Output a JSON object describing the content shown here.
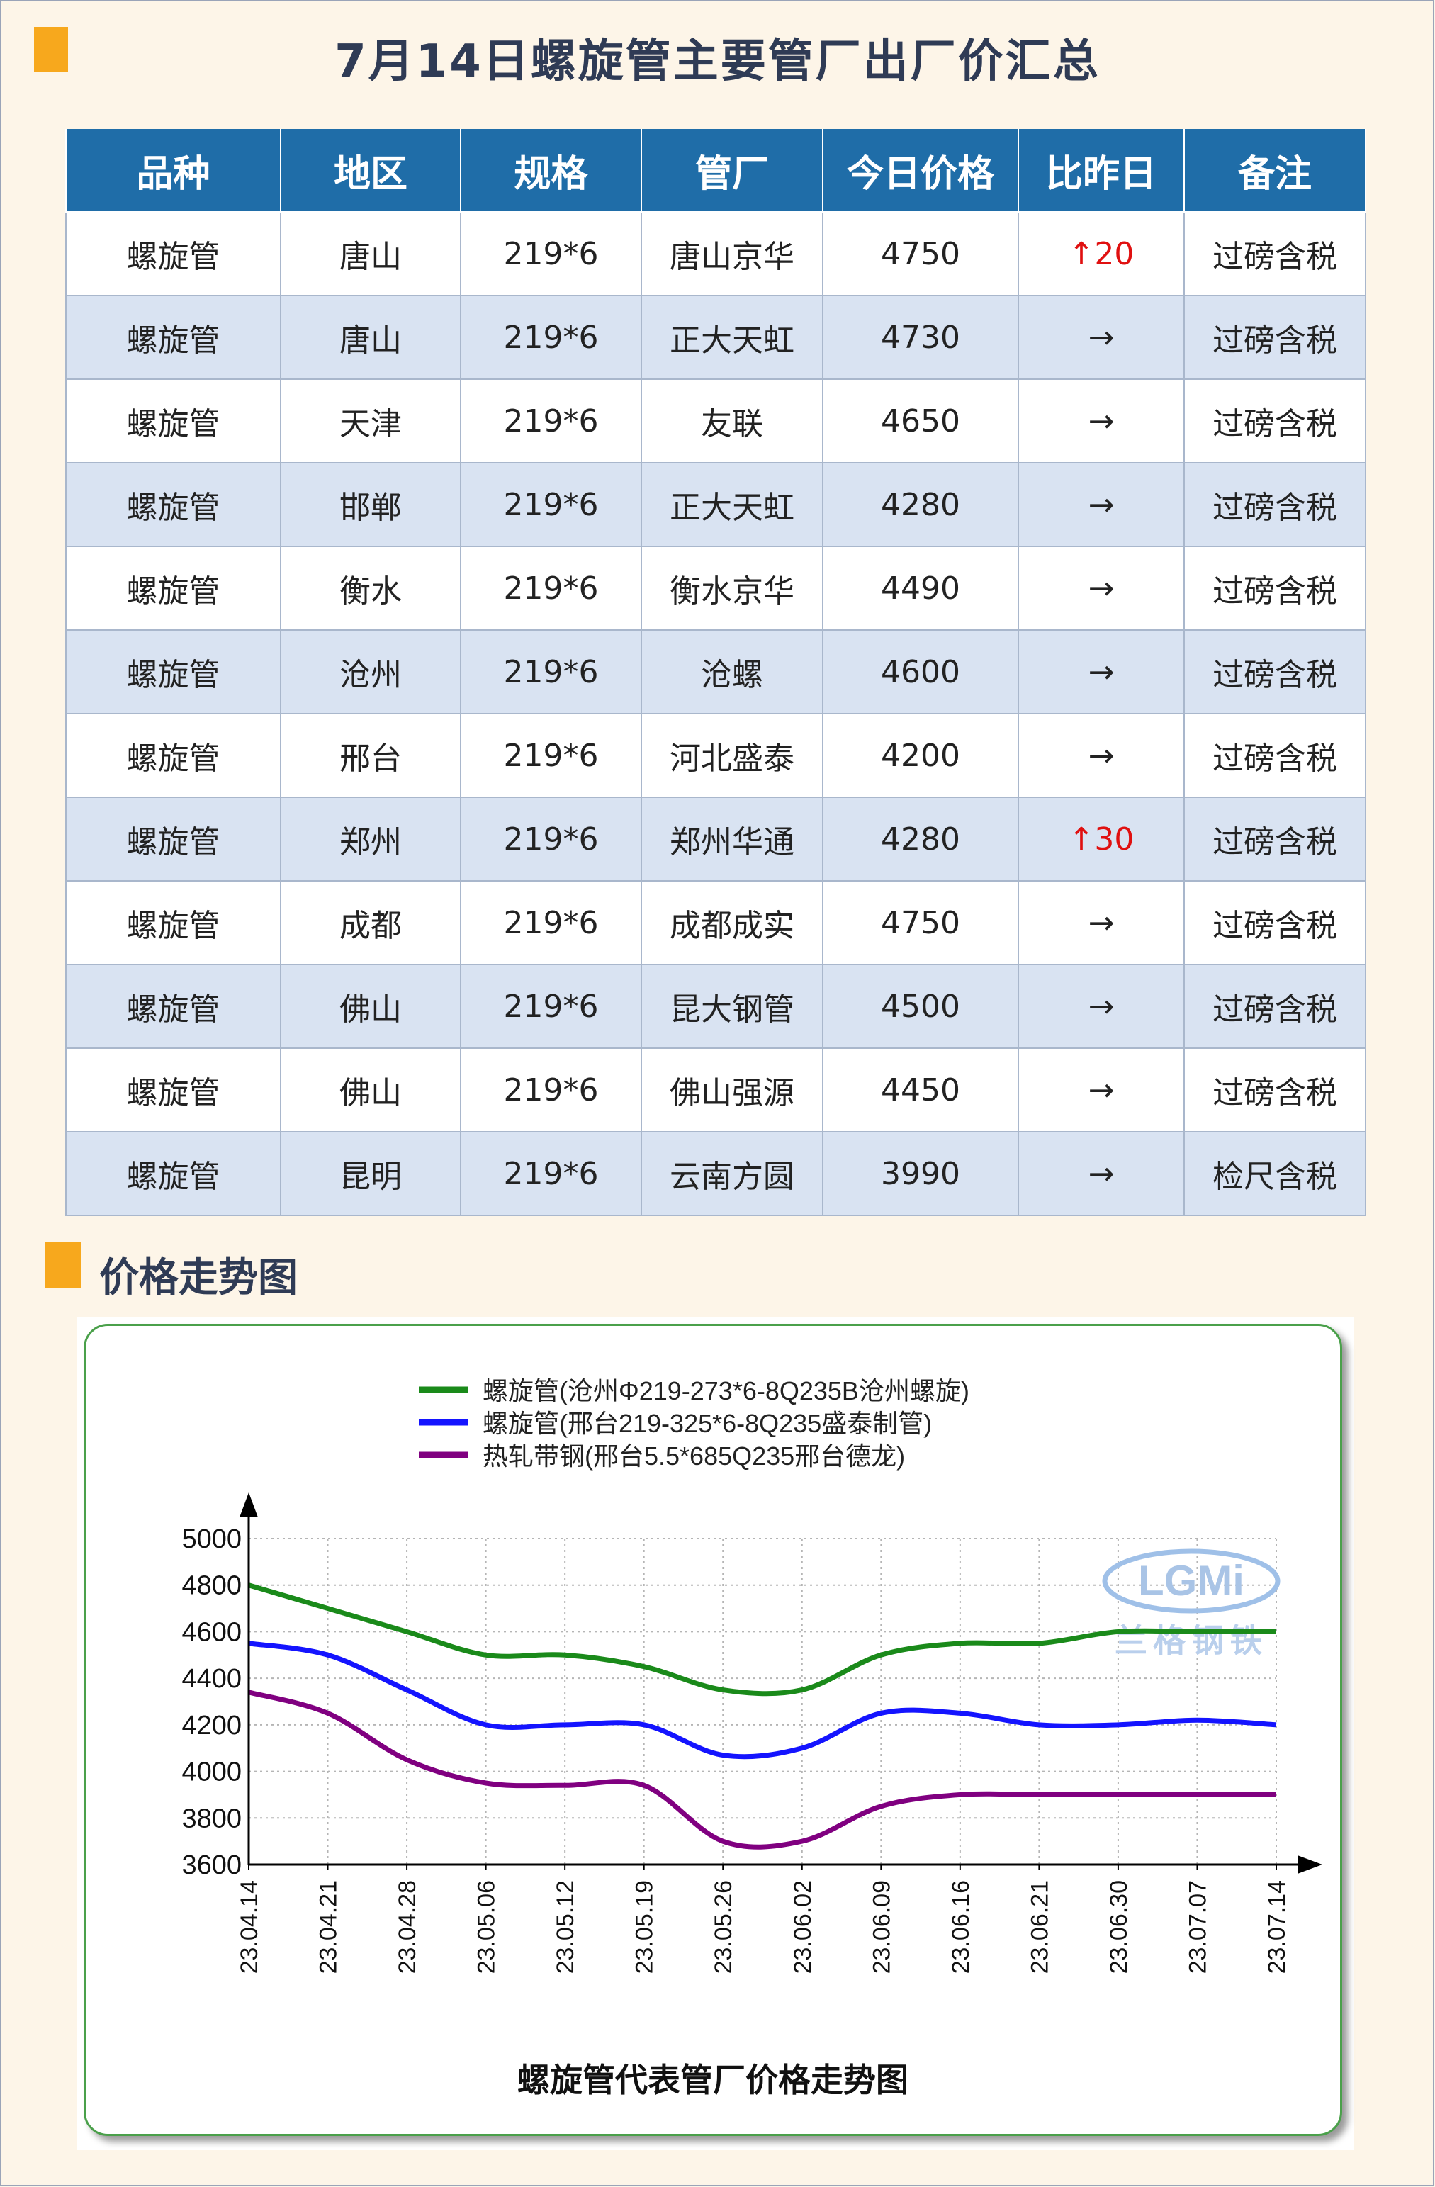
{
  "title": "7月14日螺旋管主要管厂出厂价汇总",
  "table": {
    "headers": [
      "品种",
      "地区",
      "规格",
      "管厂",
      "今日价格",
      "比昨日",
      "备注"
    ],
    "rows": [
      {
        "variety": "螺旋管",
        "region": "唐山",
        "spec": "219*6",
        "mill": "唐山京华",
        "price": "4750",
        "change": "↑20",
        "note": "过磅含税",
        "up": true
      },
      {
        "variety": "螺旋管",
        "region": "唐山",
        "spec": "219*6",
        "mill": "正大天虹",
        "price": "4730",
        "change": "→",
        "note": "过磅含税",
        "up": false
      },
      {
        "variety": "螺旋管",
        "region": "天津",
        "spec": "219*6",
        "mill": "友联",
        "price": "4650",
        "change": "→",
        "note": "过磅含税",
        "up": false
      },
      {
        "variety": "螺旋管",
        "region": "邯郸",
        "spec": "219*6",
        "mill": "正大天虹",
        "price": "4280",
        "change": "→",
        "note": "过磅含税",
        "up": false
      },
      {
        "variety": "螺旋管",
        "region": "衡水",
        "spec": "219*6",
        "mill": "衡水京华",
        "price": "4490",
        "change": "→",
        "note": "过磅含税",
        "up": false
      },
      {
        "variety": "螺旋管",
        "region": "沧州",
        "spec": "219*6",
        "mill": "沧螺",
        "price": "4600",
        "change": "→",
        "note": "过磅含税",
        "up": false
      },
      {
        "variety": "螺旋管",
        "region": "邢台",
        "spec": "219*6",
        "mill": "河北盛泰",
        "price": "4200",
        "change": "→",
        "note": "过磅含税",
        "up": false
      },
      {
        "variety": "螺旋管",
        "region": "郑州",
        "spec": "219*6",
        "mill": "郑州华通",
        "price": "4280",
        "change": "↑30",
        "note": "过磅含税",
        "up": true
      },
      {
        "variety": "螺旋管",
        "region": "成都",
        "spec": "219*6",
        "mill": "成都成实",
        "price": "4750",
        "change": "→",
        "note": "过磅含税",
        "up": false
      },
      {
        "variety": "螺旋管",
        "region": "佛山",
        "spec": "219*6",
        "mill": "昆大钢管",
        "price": "4500",
        "change": "→",
        "note": "过磅含税",
        "up": false
      },
      {
        "variety": "螺旋管",
        "region": "佛山",
        "spec": "219*6",
        "mill": "佛山强源",
        "price": "4450",
        "change": "→",
        "note": "过磅含税",
        "up": false
      },
      {
        "variety": "螺旋管",
        "region": "昆明",
        "spec": "219*6",
        "mill": "云南方圆",
        "price": "3990",
        "change": "→",
        "note": "检尺含税",
        "up": false
      }
    ]
  },
  "section_title": "价格走势图",
  "colors": {
    "accent": "#f7a81d",
    "header": "#1f6da8",
    "up": "#e01010",
    "green": "#1a8a1a",
    "blue": "#1414ff",
    "purple": "#800080"
  },
  "chart_data": {
    "type": "line",
    "title": "螺旋管代表管厂价格走势图",
    "watermark": {
      "logo": "LGMi",
      "text": "兰格钢铁"
    },
    "x": [
      "23.04.14",
      "23.04.21",
      "23.04.28",
      "23.05.06",
      "23.05.12",
      "23.05.19",
      "23.05.26",
      "23.06.02",
      "23.06.09",
      "23.06.16",
      "23.06.21",
      "23.06.30",
      "23.07.07",
      "23.07.14"
    ],
    "ylim": [
      3600,
      5000
    ],
    "yticks": [
      3600,
      3800,
      4000,
      4200,
      4400,
      4600,
      4800,
      5000
    ],
    "grid": true,
    "legend": "top-center",
    "series": [
      {
        "name": "螺旋管(沧州Φ219-273*6-8Q235B沧州螺旋)",
        "color": "#1a8a1a",
        "values": [
          4800,
          4700,
          4600,
          4500,
          4500,
          4450,
          4350,
          4350,
          4500,
          4550,
          4550,
          4600,
          4600,
          4600
        ]
      },
      {
        "name": "螺旋管(邢台219-325*6-8Q235盛泰制管)",
        "color": "#1414ff",
        "values": [
          4550,
          4500,
          4350,
          4200,
          4200,
          4200,
          4070,
          4100,
          4250,
          4250,
          4200,
          4200,
          4220,
          4200
        ]
      },
      {
        "name": "热轧带钢(邢台5.5*685Q235邢台德龙)",
        "color": "#800080",
        "values": [
          4340,
          4250,
          4050,
          3950,
          3940,
          3940,
          3700,
          3700,
          3850,
          3900,
          3900,
          3900,
          3900,
          3900
        ]
      }
    ]
  }
}
